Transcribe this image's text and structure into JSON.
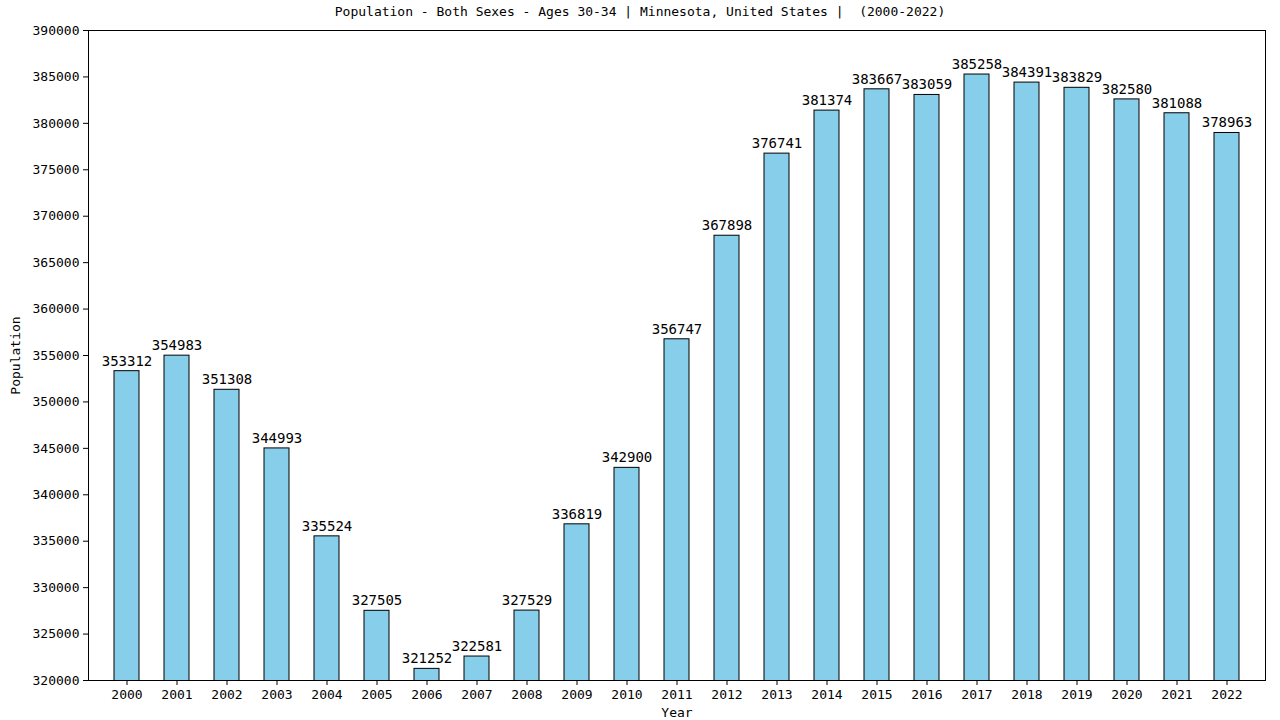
{
  "chart_data": {
    "type": "bar",
    "title": "Population - Both Sexes - Ages 30-34 | Minnesota, United States |  (2000-2022)",
    "x_label": "Year",
    "y_label": "Population",
    "categories": [
      "2000",
      "2001",
      "2002",
      "2003",
      "2004",
      "2005",
      "2006",
      "2007",
      "2008",
      "2009",
      "2010",
      "2011",
      "2012",
      "2013",
      "2014",
      "2015",
      "2016",
      "2017",
      "2018",
      "2019",
      "2020",
      "2021",
      "2022"
    ],
    "values": [
      353312,
      354983,
      351308,
      344993,
      335524,
      327505,
      321252,
      322581,
      327529,
      336819,
      342900,
      356747,
      367898,
      376741,
      381374,
      383667,
      383059,
      385258,
      384391,
      383829,
      382580,
      381088,
      378963
    ],
    "color": "#87ceeb",
    "ylim": [
      320000,
      390000
    ],
    "yticks": [
      320000,
      325000,
      330000,
      335000,
      340000,
      345000,
      350000,
      355000,
      360000,
      365000,
      370000,
      375000,
      380000,
      385000,
      390000
    ],
    "grid": false,
    "data_labels": true
  }
}
